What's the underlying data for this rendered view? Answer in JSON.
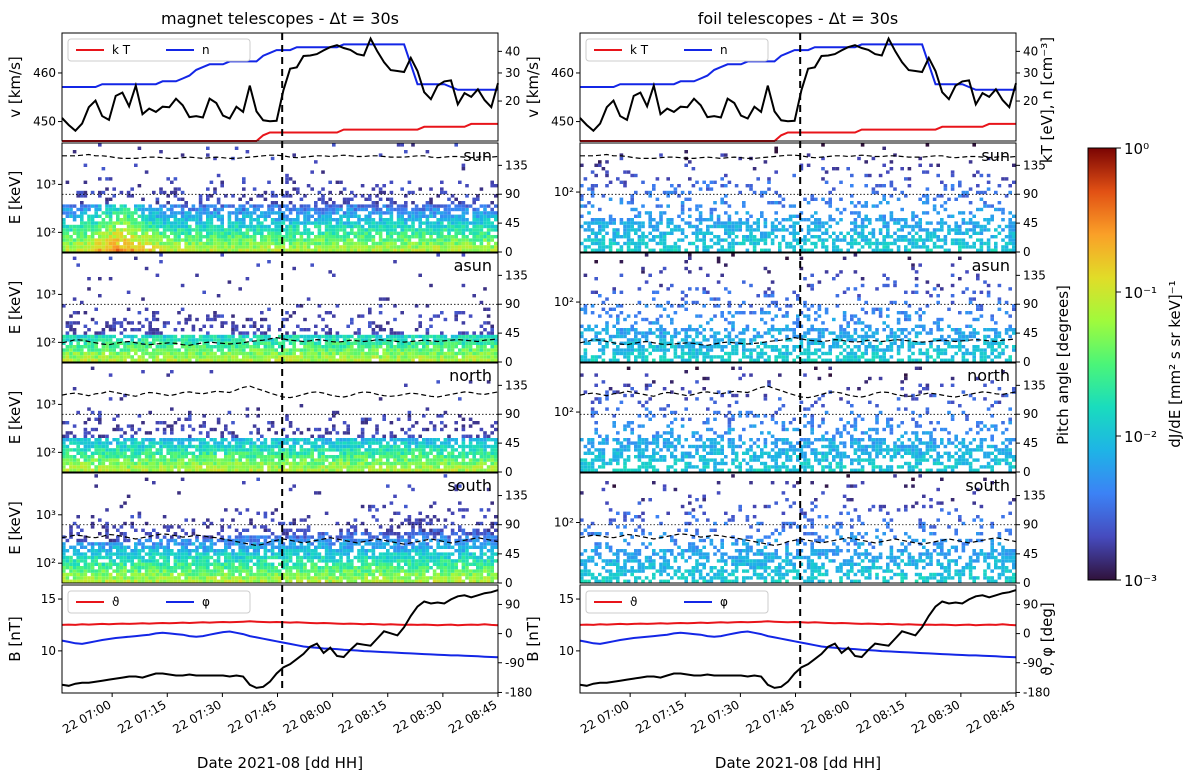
{
  "chart_data": {
    "type": "heatmap",
    "columns": [
      {
        "id": "magnet",
        "title": "magnet telescopes  -  Δt = 30s"
      },
      {
        "id": "foil",
        "title": "foil telescopes  -  Δt = 30s"
      }
    ],
    "x_axis": {
      "label": "Date 2021-08 [dd HH]",
      "ticks": [
        "22 07:00",
        "22 07:15",
        "22 07:30",
        "22 07:45",
        "22 08:00",
        "22 08:15",
        "22 08:30",
        "22 08:45"
      ],
      "event_marker": "22 07:45"
    },
    "top_panel": {
      "ylabel_left": "v [km/s]",
      "ylabel_right": "kT [eV], n [cm⁻³]",
      "left_ticks": [
        "450",
        "460"
      ],
      "right_ticks": [
        "20",
        "30",
        "40"
      ],
      "legend": [
        "k T",
        "n"
      ],
      "legend_colors": [
        "#e8141a",
        "#1326e6"
      ],
      "series": [
        {
          "name": "v",
          "color": "#000000",
          "axis": "left",
          "values": [
            448.9,
            447.4,
            446.2,
            447.7,
            451.2,
            452.6,
            449.3,
            448.5,
            453.6,
            454.3,
            451.4,
            455.8,
            449.7,
            450.9,
            450.2,
            451.3,
            451.2,
            453.0,
            451.6,
            449.1,
            449.3,
            449.0,
            453.0,
            452.1,
            449.4,
            448.8,
            451.3,
            450.2,
            455.8,
            450.3,
            448.4,
            448.2,
            448.3,
            454.8,
            459.4,
            459.7,
            462.1,
            462.2,
            462.5,
            463.3,
            464.0,
            464.4,
            463.8,
            463.4,
            462.5,
            462.2,
            465.8,
            463.1,
            460.8,
            459.1,
            458.9,
            458.7,
            461.7,
            458.9,
            454.4,
            452.9,
            455.8,
            456.7,
            456.9,
            451.8,
            454.2,
            453.4,
            455.0,
            452.7,
            451.2,
            456.3
          ]
        },
        {
          "name": "n",
          "color": "#1326e6",
          "axis": "right",
          "values": [
            29,
            29,
            29,
            29,
            29,
            29,
            30,
            30,
            30,
            30,
            30,
            30,
            30,
            30,
            30,
            31,
            31,
            31,
            32,
            33,
            35,
            36,
            37,
            37,
            37,
            38,
            38,
            38,
            38,
            38,
            40,
            41,
            42,
            42,
            42,
            43,
            43,
            43,
            43,
            43,
            43,
            43,
            44,
            44,
            44,
            44,
            44,
            44,
            44,
            44,
            44,
            44,
            37,
            30,
            30,
            30,
            30,
            30,
            29,
            28,
            28,
            28,
            28,
            28,
            28,
            28
          ]
        },
        {
          "name": "k T",
          "color": "#e8141a",
          "axis": "right",
          "values": [
            10,
            10,
            10,
            10,
            10,
            10,
            10,
            10,
            10,
            10,
            10,
            10,
            10,
            10,
            10,
            10,
            10,
            10,
            10,
            10,
            10,
            10,
            10,
            10,
            10,
            10,
            10,
            10,
            10,
            10,
            12,
            13,
            13,
            13,
            13,
            13,
            13,
            13,
            13,
            13,
            13,
            13,
            14,
            14,
            14,
            14,
            14,
            14,
            14,
            14,
            14,
            14,
            14,
            14,
            15,
            15,
            15,
            15,
            15,
            15,
            15,
            16,
            16,
            16,
            16,
            16
          ]
        }
      ]
    },
    "spectrogram_panels": [
      {
        "tag": "sun",
        "ylabel": "E [keV]",
        "pa_line": [
          150,
          150,
          150,
          151,
          152,
          150,
          150,
          149,
          147,
          146,
          146,
          146,
          147,
          148,
          148,
          147,
          146,
          146,
          147,
          148,
          147,
          146,
          147,
          148,
          147,
          146,
          146,
          147,
          148,
          149,
          150,
          151,
          151,
          150,
          148,
          147,
          148,
          149,
          150,
          150,
          149,
          150,
          151,
          150,
          149,
          149,
          150,
          150,
          149,
          148,
          148,
          148,
          149,
          150,
          150,
          148,
          147,
          148,
          149,
          149,
          148,
          147,
          148,
          149,
          148,
          149
        ]
      },
      {
        "tag": "asun",
        "ylabel": "E [keV]",
        "pa_line": [
          30,
          32,
          35,
          34,
          32,
          30,
          28,
          27,
          29,
          31,
          32,
          30,
          28,
          27,
          28,
          29,
          30,
          29,
          27,
          26,
          28,
          30,
          31,
          30,
          29,
          28,
          29,
          30,
          32,
          33,
          34,
          36,
          38,
          36,
          34,
          33,
          32,
          33,
          35,
          34,
          32,
          31,
          32,
          34,
          33,
          32,
          33,
          35,
          34,
          33,
          32,
          31,
          32,
          33,
          34,
          33,
          32,
          33,
          34,
          35,
          34,
          33,
          32,
          34,
          35,
          36
        ]
      },
      {
        "tag": "north",
        "ylabel": "E [keV]",
        "pa_line": [
          120,
          122,
          123,
          121,
          119,
          122,
          123,
          126,
          124,
          122,
          120,
          118,
          122,
          124,
          123,
          121,
          119,
          121,
          124,
          125,
          123,
          122,
          124,
          126,
          125,
          124,
          128,
          132,
          134,
          130,
          127,
          123,
          120,
          117,
          116,
          118,
          121,
          124,
          125,
          123,
          120,
          118,
          117,
          119,
          123,
          125,
          124,
          121,
          119,
          118,
          119,
          121,
          123,
          122,
          120,
          118,
          117,
          119,
          121,
          123,
          125,
          124,
          122,
          121,
          123,
          125
        ]
      },
      {
        "tag": "south",
        "ylabel": "E [keV]",
        "pa_line": [
          70,
          72,
          74,
          73,
          71,
          70,
          72,
          75,
          74,
          72,
          70,
          68,
          70,
          72,
          74,
          76,
          75,
          73,
          71,
          72,
          74,
          73,
          71,
          70,
          68,
          66,
          64,
          62,
          60,
          58,
          60,
          64,
          66,
          68,
          66,
          64,
          62,
          64,
          66,
          68,
          70,
          68,
          66,
          64,
          62,
          64,
          66,
          68,
          66,
          64,
          62,
          60,
          62,
          64,
          66,
          68,
          66,
          64,
          62,
          64,
          66,
          68,
          70,
          68,
          66,
          64
        ]
      }
    ],
    "spectrogram_axes": {
      "left_ticks_magnet": [
        "10²",
        "10³"
      ],
      "left_ticks_foil": [
        "10²"
      ],
      "right_ticks": [
        "0",
        "45",
        "90",
        "135"
      ]
    },
    "bottom_panel": {
      "ylabel_left": "B [nT]",
      "ylabel_right": "ϑ, φ [deg]",
      "left_ticks": [
        "10",
        "15"
      ],
      "right_ticks": [
        "-180",
        "-90",
        "0",
        "90"
      ],
      "legend": [
        "ϑ",
        "φ"
      ],
      "legend_colors": [
        "#e8141a",
        "#1326e6"
      ],
      "series": [
        {
          "name": "B",
          "color": "#000000",
          "axis": "left",
          "values": [
            7.3,
            7.2,
            7.4,
            7.5,
            7.5,
            7.6,
            7.7,
            7.8,
            7.9,
            8.0,
            8.1,
            8.1,
            8.0,
            8.2,
            8.4,
            8.4,
            8.3,
            8.2,
            8.2,
            8.3,
            8.2,
            8.2,
            8.2,
            8.2,
            8.2,
            8.1,
            8.2,
            8.1,
            7.3,
            7.0,
            7.1,
            7.6,
            8.4,
            9.0,
            9.3,
            9.8,
            10.3,
            11.0,
            11.3,
            10.4,
            10.9,
            10.1,
            10.0,
            10.7,
            11.3,
            11.2,
            11.1,
            11.8,
            12.5,
            12.3,
            12.1,
            12.9,
            14.0,
            14.9,
            15.4,
            15.2,
            15.3,
            15.2,
            15.6,
            15.9,
            16.0,
            15.8,
            16.0,
            16.2,
            16.3,
            16.5
          ]
        },
        {
          "name": "ϑ",
          "color": "#e8141a",
          "axis": "right",
          "values": [
            28,
            29,
            28,
            30,
            29,
            30,
            31,
            30,
            31,
            32,
            31,
            32,
            33,
            32,
            33,
            34,
            33,
            34,
            35,
            34,
            35,
            36,
            35,
            36,
            37,
            36,
            37,
            38,
            39,
            38,
            37,
            36,
            37,
            36,
            35,
            36,
            35,
            34,
            33,
            34,
            33,
            32,
            31,
            32,
            31,
            30,
            31,
            30,
            29,
            30,
            29,
            28,
            29,
            28,
            29,
            28,
            27,
            28,
            29,
            27,
            28,
            29,
            28,
            30,
            28,
            27
          ]
        },
        {
          "name": "φ",
          "color": "#1326e6",
          "axis": "right",
          "values": [
            -20,
            -24,
            -28,
            -30,
            -26,
            -22,
            -18,
            -15,
            -12,
            -10,
            -8,
            -6,
            -4,
            -2,
            2,
            4,
            2,
            0,
            -2,
            -6,
            -8,
            -6,
            -2,
            2,
            6,
            8,
            4,
            0,
            -6,
            -10,
            -14,
            -18,
            -22,
            -26,
            -30,
            -34,
            -38,
            -40,
            -42,
            -44,
            -45,
            -46,
            -48,
            -49,
            -50,
            -52,
            -53,
            -54,
            -55,
            -56,
            -57,
            -58,
            -59,
            -60,
            -61,
            -62,
            -63,
            -64,
            -65,
            -65,
            -66,
            -67,
            -68,
            -69,
            -70,
            -71
          ]
        }
      ]
    },
    "colorbar": {
      "label": "dJ/dE [mm² s sr keV]⁻¹",
      "scale": "log",
      "range": [
        0.001,
        1
      ],
      "ticks": [
        "10⁰",
        "10⁻¹",
        "10⁻²",
        "10⁻³"
      ],
      "colormap": "turbo"
    },
    "pitch_angle_label": "Pitch angle [degrees]"
  }
}
